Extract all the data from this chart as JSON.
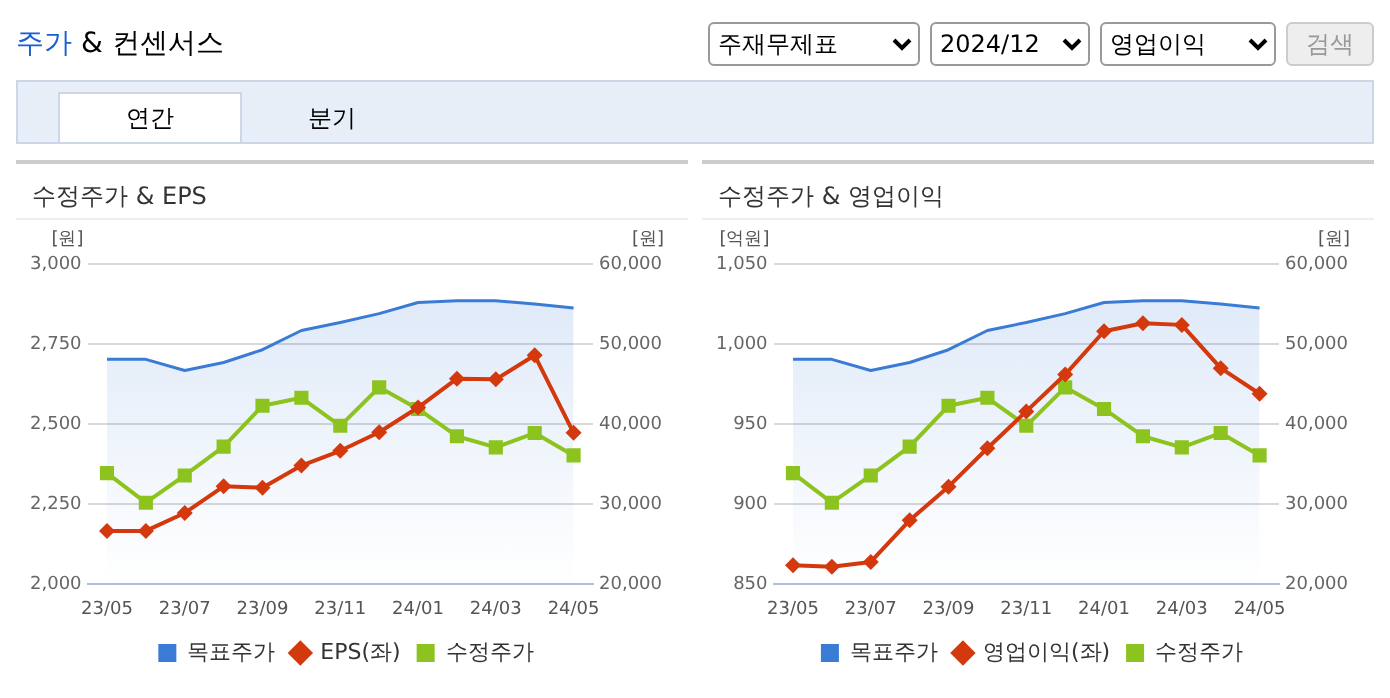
{
  "chart_data": [
    {
      "type": "other",
      "title": "주가 & 컨센서스",
      "annotations": [
        "주재무제표",
        "2024/12",
        "영업이익",
        "검색",
        "연간",
        "분기"
      ]
    },
    {
      "type": "line",
      "title": "수정주가 & EPS",
      "ylabel": "[원]",
      "y2label": "[원]",
      "categories": [
        "23/05",
        null,
        "23/07",
        null,
        "23/09",
        null,
        "23/11",
        null,
        "24/01",
        null,
        "24/03",
        null,
        "24/05"
      ],
      "ylim": [
        2000,
        3000
      ],
      "yticks": [
        {
          "value": 2000,
          "label": "2,000"
        },
        {
          "value": 2250,
          "label": "2,250"
        },
        {
          "value": 2500,
          "label": "2,500"
        },
        {
          "value": 2750,
          "label": "2,750"
        },
        {
          "value": 3000,
          "label": "3,000"
        }
      ],
      "y2lim": [
        20000,
        60000
      ],
      "y2ticks": [
        {
          "value": 20000,
          "label": "20,000"
        },
        {
          "value": 30000,
          "label": "30,000"
        },
        {
          "value": 40000,
          "label": "40,000"
        },
        {
          "value": 50000,
          "label": "50,000"
        },
        {
          "value": 60000,
          "label": "60,000"
        }
      ],
      "grid": "y",
      "legend": "bottom",
      "series": [
        {
          "name": "목표주가",
          "type": "area",
          "color": "#3a7bd5",
          "axis": "y2",
          "marker": "none",
          "values": [
            48100,
            48100,
            46700,
            47700,
            49300,
            51700,
            52700,
            53800,
            55200,
            55400,
            55400,
            55000,
            54500
          ]
        },
        {
          "name": "EPS(좌)",
          "color": "#d4380d",
          "marker": "diamond",
          "values": [
            2167,
            2167,
            2223,
            2306,
            2302,
            2371,
            2417,
            2475,
            2552,
            2642,
            2640,
            2715,
            2473
          ]
        },
        {
          "name": "수정주가",
          "color": "#8cc31e",
          "axis": "y2",
          "marker": "square",
          "values": [
            33900,
            30200,
            33600,
            37200,
            42300,
            43300,
            39800,
            44600,
            41900,
            38500,
            37100,
            38900,
            36100
          ]
        }
      ]
    },
    {
      "type": "line",
      "title": "수정주가 & 영업이익",
      "ylabel": "[억원]",
      "y2label": "[원]",
      "categories": [
        "23/05",
        null,
        "23/07",
        null,
        "23/09",
        null,
        "23/11",
        null,
        "24/01",
        null,
        "24/03",
        null,
        "24/05"
      ],
      "ylim": [
        850,
        1050
      ],
      "yticks": [
        850,
        900,
        950,
        {
          "value": 1000,
          "label": "1,000"
        },
        {
          "value": 1050,
          "label": "1,050"
        }
      ],
      "y2lim": [
        20000,
        60000
      ],
      "y2ticks": [
        {
          "value": 20000,
          "label": "20,000"
        },
        {
          "value": 30000,
          "label": "30,000"
        },
        {
          "value": 40000,
          "label": "40,000"
        },
        {
          "value": 50000,
          "label": "50,000"
        },
        {
          "value": 60000,
          "label": "60,000"
        }
      ],
      "grid": "y",
      "legend": "bottom",
      "series": [
        {
          "name": "목표주가",
          "type": "area",
          "color": "#3a7bd5",
          "axis": "y2",
          "marker": "none",
          "values": [
            48100,
            48100,
            46700,
            47700,
            49300,
            51700,
            52700,
            53800,
            55200,
            55400,
            55400,
            55000,
            54500
          ]
        },
        {
          "name": "영업이익(좌)",
          "color": "#d4380d",
          "marker": "diamond",
          "values": [
            862,
            861,
            864,
            890,
            911,
            935,
            958,
            981,
            1008,
            1013,
            1012,
            985,
            969
          ]
        },
        {
          "name": "수정주가",
          "color": "#8cc31e",
          "axis": "y2",
          "marker": "square",
          "values": [
            33900,
            30200,
            33600,
            37200,
            42300,
            43300,
            39800,
            44600,
            41900,
            38500,
            37100,
            38900,
            36100
          ]
        }
      ]
    }
  ]
}
